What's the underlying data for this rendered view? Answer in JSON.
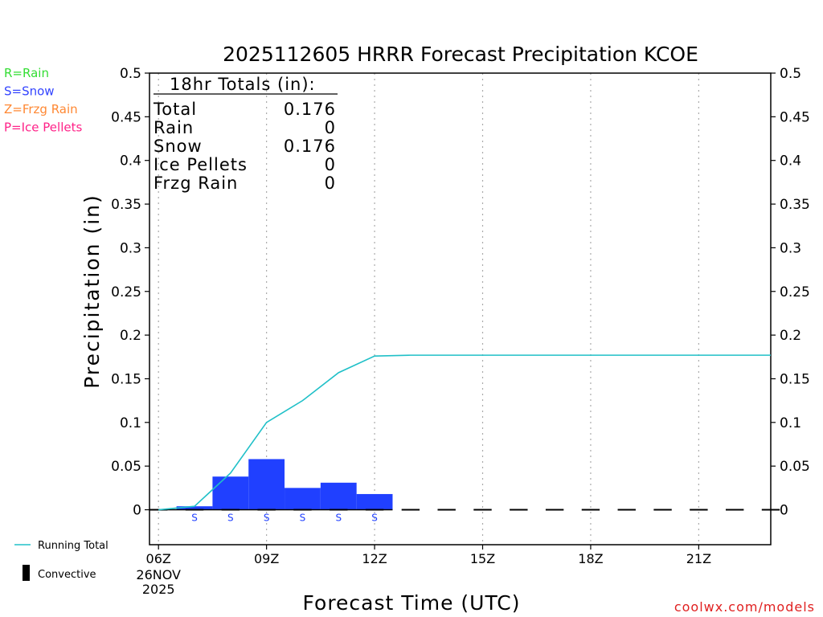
{
  "title": "2025112605 HRRR Forecast Precipitation KCOE",
  "ylabel": "Precipitation (in)",
  "xlabel": "Forecast Time (UTC)",
  "watermark": "coolwx.com/models",
  "ptype_legend": [
    {
      "text": "R=Rain",
      "color": "#33dd33"
    },
    {
      "text": "S=Snow",
      "color": "#3344ff"
    },
    {
      "text": "Z=Frzg Rain",
      "color": "#ff8833"
    },
    {
      "text": "P=Ice Pellets",
      "color": "#ff2288"
    }
  ],
  "series_legend": {
    "running_total": "Running Total",
    "convective": "Convective"
  },
  "totals_box": {
    "heading": "18hr Totals (in):",
    "rows": [
      {
        "label": "Total",
        "value": "0.176"
      },
      {
        "label": "Rain",
        "value": "0"
      },
      {
        "label": "Snow",
        "value": "0.176"
      },
      {
        "label": "Ice Pellets",
        "value": "0"
      },
      {
        "label": "Frzg Rain",
        "value": "0"
      }
    ]
  },
  "colors": {
    "snow_bar": "#2040ff",
    "running_total": "#20c0c8",
    "watermark": "#e02020",
    "grid": "#aaaaaa"
  },
  "chart_data": {
    "type": "bar",
    "x_unit": "forecast hour (UTC)",
    "xlim": [
      5.75,
      23
    ],
    "ylim": [
      -0.04,
      0.5
    ],
    "y_ticks": [
      0,
      0.05,
      0.1,
      0.15,
      0.2,
      0.25,
      0.3,
      0.35,
      0.4,
      0.45,
      0.5
    ],
    "y_tick_labels": [
      "0",
      "0.05",
      "0.1",
      "0.15",
      "0.2",
      "0.25",
      "0.3",
      "0.35",
      "0.4",
      "0.45",
      "0.5"
    ],
    "x_ticks": [
      {
        "x": 6,
        "label": "06Z",
        "sub": [
          "26NOV",
          "2025"
        ]
      },
      {
        "x": 9,
        "label": "09Z"
      },
      {
        "x": 12,
        "label": "12Z"
      },
      {
        "x": 15,
        "label": "15Z"
      },
      {
        "x": 18,
        "label": "18Z"
      },
      {
        "x": 21,
        "label": "21Z"
      }
    ],
    "grid": "vertical dotted",
    "hourly_precip": {
      "hours": [
        7,
        8,
        9,
        10,
        11,
        12
      ],
      "values": [
        0.004,
        0.038,
        0.058,
        0.025,
        0.031,
        0.018
      ],
      "ptype": [
        "S",
        "S",
        "S",
        "S",
        "S",
        "S"
      ]
    },
    "running_total": {
      "x": [
        6,
        7,
        8,
        9,
        10,
        11,
        12,
        13,
        23
      ],
      "y": [
        0,
        0.004,
        0.042,
        0.1,
        0.125,
        0.157,
        0.176,
        0.177,
        0.177
      ]
    },
    "convective_values": [
      0,
      0,
      0,
      0,
      0,
      0,
      0,
      0,
      0,
      0,
      0,
      0,
      0,
      0,
      0,
      0,
      0,
      0
    ]
  }
}
